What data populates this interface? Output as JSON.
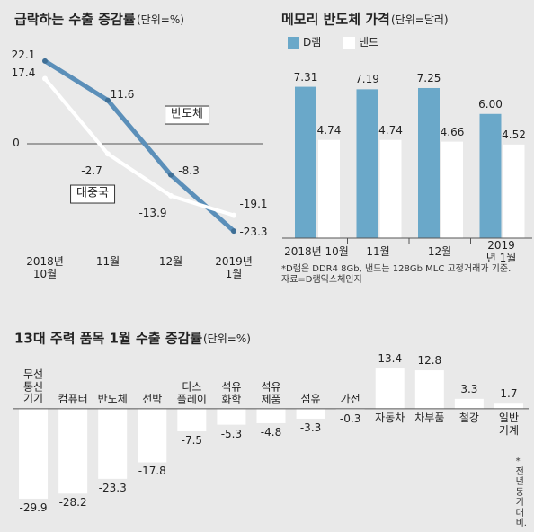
{
  "chart_data": [
    {
      "type": "line",
      "title": "급락하는 수출 증감률",
      "unit": "(단위=%)",
      "categories": [
        "2018년\n10월",
        "11월",
        "12월",
        "2019년\n1월"
      ],
      "series": [
        {
          "name": "반도체",
          "color": "#5b8fb9",
          "values": [
            22.1,
            11.6,
            -8.3,
            -23.3
          ]
        },
        {
          "name": "대중국",
          "color": "#ffffff",
          "values": [
            17.4,
            -2.7,
            -13.9,
            -19.1
          ]
        }
      ],
      "ylim": [
        -26.4,
        24
      ],
      "yticks": [
        0
      ]
    },
    {
      "type": "bar",
      "title": "메모리 반도체 가격",
      "unit": "(단위=달러)",
      "categories": [
        "2018년 10월",
        "11월",
        "12월",
        "2019년 1월"
      ],
      "series": [
        {
          "name": "D램",
          "color": "#6aa8c9",
          "values": [
            7.31,
            7.19,
            7.25,
            6.0
          ],
          "value_labels": [
            "7.31",
            "7.19",
            "7.25",
            "6.00"
          ]
        },
        {
          "name": "낸드",
          "color": "#ffffff",
          "values": [
            4.74,
            4.74,
            4.66,
            4.52
          ]
        }
      ],
      "ylim": [
        0,
        7.9
      ],
      "note": "*D램은 DDR4 8Gb, 낸드는 128Gb MLC 고정거래가 기준.\n자료=D램익스체인지"
    },
    {
      "type": "bar",
      "title": "13대 주력 품목 1월 수출 증감률",
      "unit": "(단위=%)",
      "categories": [
        "무선\n통신\n기기",
        "컴퓨터",
        "반도체",
        "선박",
        "디스\n플레이",
        "석유\n화학",
        "석유\n제품",
        "섬유",
        "가전",
        "자동차",
        "차부품",
        "철강",
        "일반\n기계"
      ],
      "values": [
        -29.9,
        -28.2,
        -23.3,
        -17.8,
        -7.5,
        -5.3,
        -4.8,
        -3.3,
        -0.3,
        13.4,
        12.8,
        3.3,
        1.7
      ],
      "color": "#ffffff",
      "ylim": [
        -32,
        16.4
      ],
      "note": "*전년 동기 대비."
    }
  ]
}
